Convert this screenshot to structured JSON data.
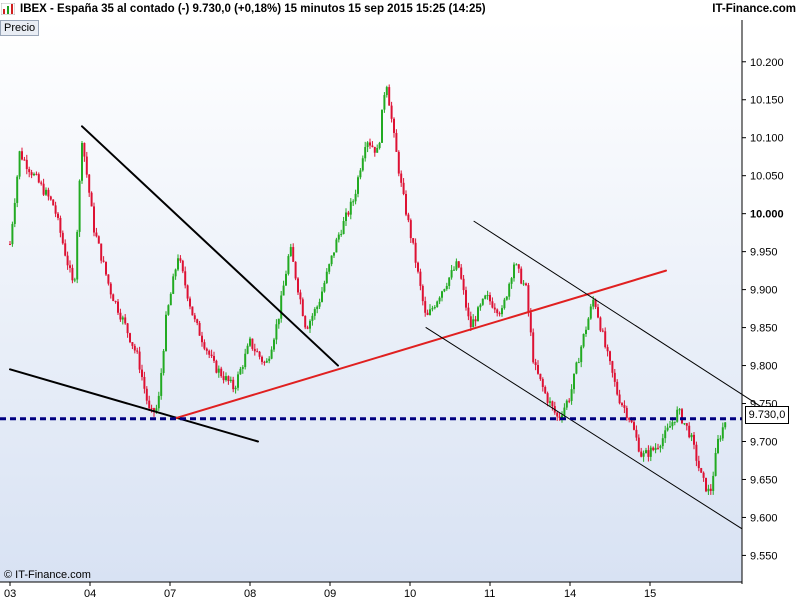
{
  "header": {
    "title": "IBEX - España 35 al contado (-)    9.730,0 (+0,18%)    15 minutos  15 sep 2015 15:25 (14:25)",
    "brand": "IT-Finance.com",
    "icon": "bar-chart-icon"
  },
  "price_tab": "Precio",
  "copyright": "© IT-Finance.com",
  "last_price_label": "9.730,0",
  "colors": {
    "background_top": "#ffffff",
    "background_bottom": "#d8e2f3",
    "up": "#22aa22",
    "down": "#dd1133",
    "trendline_black": "#000000",
    "trendline_red": "#e02020",
    "dashed_price": "#000080",
    "grid": "#c8d2e4"
  },
  "chart_data": {
    "type": "candlestick",
    "title": "IBEX - España 35 al contado (-)",
    "interval": "15 minutos",
    "y_tick_labels": [
      "9.550",
      "9.600",
      "9.650",
      "9.700",
      "9.750",
      "9.800",
      "9.850",
      "9.900",
      "9.950",
      "10.000",
      "10.050",
      "10.100",
      "10.150",
      "10.200"
    ],
    "y_ticks": [
      9550,
      9600,
      9650,
      9700,
      9750,
      9800,
      9850,
      9900,
      9950,
      10000,
      10050,
      10100,
      10150,
      10200
    ],
    "ylim": [
      9515,
      10255
    ],
    "x_tick_labels": [
      "03",
      "04",
      "07",
      "08",
      "09",
      "10",
      "11",
      "14",
      "15"
    ],
    "x_ticks": [
      0,
      1,
      2,
      3,
      4,
      5,
      6,
      7,
      8
    ],
    "xlim": [
      0,
      9.05
    ],
    "last_price": 9730.0,
    "change_pct": 0.18,
    "close_path": [
      [
        0.0,
        9960
      ],
      [
        0.12,
        10080
      ],
      [
        0.3,
        10050
      ],
      [
        0.55,
        10010
      ],
      [
        0.8,
        9900
      ],
      [
        0.9,
        10100
      ],
      [
        1.05,
        9980
      ],
      [
        1.25,
        9900
      ],
      [
        1.45,
        9850
      ],
      [
        1.6,
        9810
      ],
      [
        1.75,
        9735
      ],
      [
        1.85,
        9745
      ],
      [
        1.95,
        9860
      ],
      [
        2.1,
        9945
      ],
      [
        2.3,
        9860
      ],
      [
        2.55,
        9800
      ],
      [
        2.8,
        9770
      ],
      [
        3.0,
        9830
      ],
      [
        3.2,
        9800
      ],
      [
        3.35,
        9860
      ],
      [
        3.5,
        9955
      ],
      [
        3.7,
        9850
      ],
      [
        3.85,
        9880
      ],
      [
        4.1,
        9970
      ],
      [
        4.3,
        10020
      ],
      [
        4.45,
        10100
      ],
      [
        4.6,
        10080
      ],
      [
        4.7,
        10180
      ],
      [
        4.8,
        10100
      ],
      [
        4.9,
        10030
      ],
      [
        5.05,
        9950
      ],
      [
        5.2,
        9860
      ],
      [
        5.4,
        9900
      ],
      [
        5.6,
        9935
      ],
      [
        5.75,
        9850
      ],
      [
        5.95,
        9890
      ],
      [
        6.15,
        9870
      ],
      [
        6.3,
        9935
      ],
      [
        6.45,
        9900
      ],
      [
        6.55,
        9800
      ],
      [
        6.7,
        9760
      ],
      [
        6.85,
        9730
      ],
      [
        7.0,
        9760
      ],
      [
        7.15,
        9830
      ],
      [
        7.3,
        9890
      ],
      [
        7.45,
        9820
      ],
      [
        7.6,
        9760
      ],
      [
        7.75,
        9730
      ],
      [
        7.9,
        9680
      ],
      [
        8.05,
        9690
      ],
      [
        8.2,
        9710
      ],
      [
        8.35,
        9740
      ],
      [
        8.5,
        9710
      ],
      [
        8.65,
        9650
      ],
      [
        8.75,
        9630
      ],
      [
        8.85,
        9700
      ],
      [
        8.95,
        9730
      ]
    ],
    "trendlines": [
      {
        "name": "",
        "color": "black",
        "points": [
          [
            0.0,
            9795
          ],
          [
            3.1,
            9700
          ]
        ]
      },
      {
        "name": "",
        "color": "black",
        "points": [
          [
            0.9,
            10115
          ],
          [
            4.1,
            9800
          ]
        ]
      },
      {
        "name": "",
        "color": "red",
        "points": [
          [
            2.05,
            9730
          ],
          [
            8.2,
            9925
          ]
        ]
      },
      {
        "name": "",
        "color": "black",
        "points": [
          [
            5.2,
            9850
          ],
          [
            9.15,
            9585
          ]
        ]
      },
      {
        "name": "",
        "color": "black",
        "points": [
          [
            5.8,
            9990
          ],
          [
            9.4,
            9745
          ]
        ]
      }
    ],
    "horizontal_line": {
      "value": 9730,
      "style": "dashed"
    },
    "grid": false,
    "legend": "none"
  }
}
